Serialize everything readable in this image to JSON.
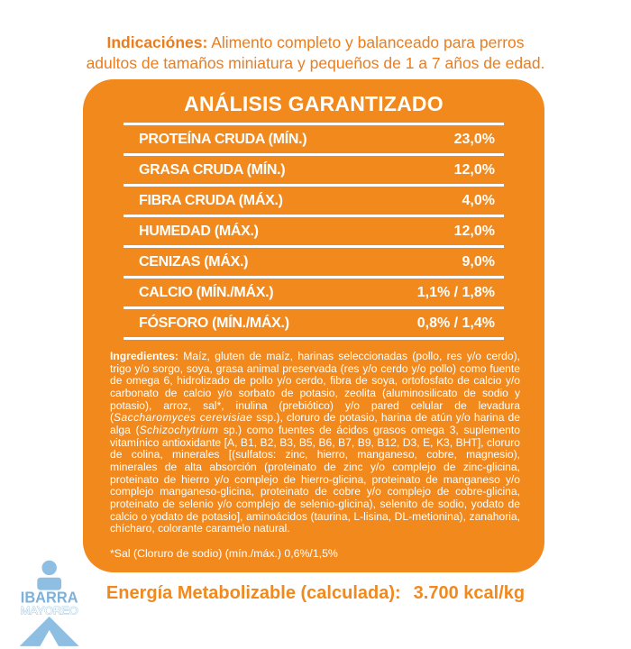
{
  "colors": {
    "panel_orange": "#f1891d",
    "text_orange": "#ea7d1e",
    "logo_blue": "#8ebee1",
    "white": "#ffffff"
  },
  "indications": {
    "label": "Indicaciónes:",
    "text": " Alimento completo y balanceado para perros adultos de tamaños miniatura y pequeños de 1 a 7 años de edad."
  },
  "panel": {
    "title": "ANÁLISIS GARANTIZADO",
    "rows": [
      {
        "label": "PROTEÍNA CRUDA (MÍN.)",
        "value": "23,0%"
      },
      {
        "label": "GRASA CRUDA (MÍN.)",
        "value": "12,0%"
      },
      {
        "label": "FIBRA CRUDA (MÁX.)",
        "value": "4,0%"
      },
      {
        "label": "HUMEDAD (MÁX.)",
        "value": "12,0%"
      },
      {
        "label": "CENIZAS (MÁX.)",
        "value": "9,0%"
      },
      {
        "label": "CALCIO (MÍN./MÁX.)",
        "value": "1,1% / 1,8%"
      },
      {
        "label": "FÓSFORO (MÍN./MÁX.)",
        "value": "0,8% / 1,4%"
      }
    ],
    "ingredients": {
      "label": "Ingredientes:",
      "segments": [
        {
          "text": " Maíz, gluten de maíz, harinas seleccionadas (pollo, res y/o cerdo), trigo y/o sorgo, soya, grasa animal preservada (res y/o cerdo y/o pollo) como fuente de omega 6, hidrolizado de pollo y/o cerdo, fibra de soya, ortofosfato de calcio y/o carbonato de calcio y/o sorbato de potasio, zeolita (aluminosilicato de sodio y potasio), arroz, sal*, inulina (prebiótico) y/o pared celular de levadura (",
          "italic": false
        },
        {
          "text": "Saccharomyces cerevisiae",
          "italic": true
        },
        {
          "text": " ssp.), cloruro de potasio, harina de atún y/o harina de alga (",
          "italic": false
        },
        {
          "text": "Schizochytrium",
          "italic": true
        },
        {
          "text": " sp.) como fuentes de ácidos grasos omega 3, suplemento vitamínico antioxidante [A, B1, B2, B3, B5, B6, B7, B9, B12, D3, E, K3, BHT], cloruro de colina, minerales [(sulfatos: zinc, hierro, manganeso, cobre, magnesio), minerales de alta absorción (proteinato de zinc y/o complejo de zinc-glicina, proteinato de hierro y/o complejo de hierro-glicina, proteinato de manganeso y/o complejo manganeso-glicina, proteinato de cobre y/o complejo de cobre-glicina, proteinato de selenio y/o complejo de selenio-glicina), selenito de sodio, yodato de calcio o yodato de potasio], aminoácidos (taurina, L-lisina, DL-metionina), zanahoria, chícharo, colorante caramelo natural.",
          "italic": false
        }
      ]
    },
    "salt_note": "*Sal (Cloruro de sodio) (mín./máx.) 0,6%/1,5%"
  },
  "energy": {
    "label": "Energía Metabolizable (calculada):",
    "value": "3.700 kcal/kg"
  },
  "logo": {
    "line1": "IBARRA",
    "line2": "MAYOREO"
  }
}
